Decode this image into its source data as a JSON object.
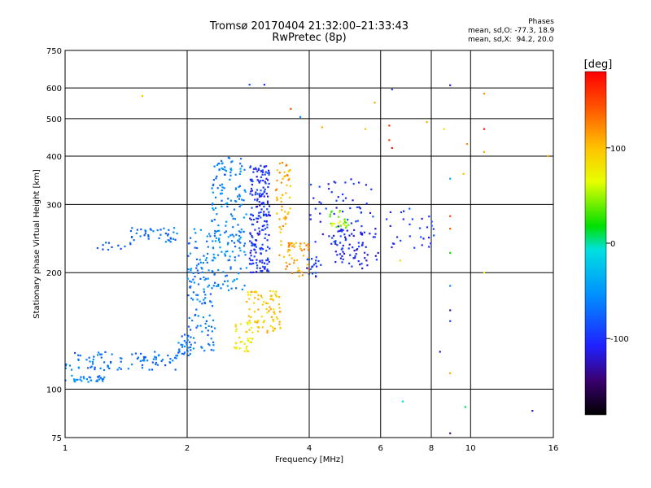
{
  "chart_data": {
    "type": "scatter",
    "title": "Tromsø 20170404 21:32:00–21:33:43",
    "subtitle": "RwPretec (8p)",
    "xlabel": "Frequency [MHz]",
    "ylabel": "Stationary phase Virtual Height [km]",
    "x_scale": "log",
    "y_scale": "log",
    "xlim": [
      1,
      16
    ],
    "ylim": [
      75,
      750
    ],
    "x_ticks": [
      1,
      2,
      4,
      6,
      8,
      10,
      16
    ],
    "y_ticks": [
      75,
      100,
      200,
      300,
      400,
      500,
      600,
      750
    ],
    "grid": true,
    "phase_stats": {
      "header": "Phases",
      "o_label": "mean, sd,O:",
      "o_values": "-77.3, 18.9",
      "x_label": "mean, sd,X:",
      "x_values": " 94.2, 20.0"
    },
    "colorbar": {
      "label": "[deg]",
      "ticks": [
        100,
        0,
        -100
      ],
      "range": [
        -180,
        180
      ],
      "colormap": "rainbow"
    },
    "clusters": [
      {
        "f": [
          1.0,
          1.25
        ],
        "h": [
          104,
          109
        ],
        "phase": -60,
        "n": 30
      },
      {
        "f": [
          1.0,
          1.9
        ],
        "h": [
          112,
          125
        ],
        "phase": -70,
        "n": 90
      },
      {
        "f": [
          1.9,
          2.05
        ],
        "h": [
          122,
          140
        ],
        "phase": -65,
        "n": 25
      },
      {
        "f": [
          1.45,
          1.9
        ],
        "h": [
          240,
          262
        ],
        "phase": -70,
        "n": 40
      },
      {
        "f": [
          1.2,
          1.45
        ],
        "h": [
          228,
          240
        ],
        "phase": -80,
        "n": 12
      },
      {
        "f": [
          2.0,
          2.35
        ],
        "h": [
          125,
          260
        ],
        "phase": -65,
        "n": 130
      },
      {
        "f": [
          2.3,
          2.8
        ],
        "h": [
          180,
          400
        ],
        "phase": -60,
        "n": 180
      },
      {
        "f": [
          2.6,
          2.9
        ],
        "h": [
          125,
          150
        ],
        "phase": 80,
        "n": 35
      },
      {
        "f": [
          2.85,
          3.2
        ],
        "h": [
          200,
          380
        ],
        "phase": -100,
        "n": 200
      },
      {
        "f": [
          2.8,
          3.4
        ],
        "h": [
          140,
          180
        ],
        "phase": 95,
        "n": 80
      },
      {
        "f": [
          3.3,
          3.6
        ],
        "h": [
          210,
          390
        ],
        "phase": 110,
        "n": 60
      },
      {
        "f": [
          3.5,
          4.0
        ],
        "h": [
          195,
          240
        ],
        "phase": 115,
        "n": 40
      },
      {
        "f": [
          3.9,
          4.3
        ],
        "h": [
          195,
          220
        ],
        "phase": -95,
        "n": 20
      },
      {
        "f": [
          4.0,
          5.8
        ],
        "h": [
          230,
          350
        ],
        "phase": -100,
        "n": 70
      },
      {
        "f": [
          4.5,
          5.0
        ],
        "h": [
          260,
          290
        ],
        "phase": 50,
        "n": 25
      },
      {
        "f": [
          4.6,
          6.0
        ],
        "h": [
          205,
          260
        ],
        "phase": -110,
        "n": 60
      },
      {
        "f": [
          6.2,
          8.2
        ],
        "h": [
          230,
          300
        ],
        "phase": -100,
        "n": 30
      }
    ],
    "sparse_points": [
      {
        "f": 1.55,
        "h": 572,
        "phase": 100
      },
      {
        "f": 2.85,
        "h": 612,
        "phase": -90
      },
      {
        "f": 3.1,
        "h": 612,
        "phase": -100
      },
      {
        "f": 3.6,
        "h": 530,
        "phase": 140
      },
      {
        "f": 3.8,
        "h": 505,
        "phase": -60
      },
      {
        "f": 4.3,
        "h": 475,
        "phase": 110
      },
      {
        "f": 5.5,
        "h": 470,
        "phase": 100
      },
      {
        "f": 5.8,
        "h": 550,
        "phase": 110
      },
      {
        "f": 6.4,
        "h": 595,
        "phase": -90
      },
      {
        "f": 6.3,
        "h": 480,
        "phase": 160
      },
      {
        "f": 6.3,
        "h": 440,
        "phase": 150
      },
      {
        "f": 6.4,
        "h": 420,
        "phase": 170
      },
      {
        "f": 6.7,
        "h": 215,
        "phase": 90
      },
      {
        "f": 6.8,
        "h": 93,
        "phase": -10
      },
      {
        "f": 7.8,
        "h": 490,
        "phase": 110
      },
      {
        "f": 8.6,
        "h": 470,
        "phase": 80
      },
      {
        "f": 8.9,
        "h": 610,
        "phase": -120
      },
      {
        "f": 8.9,
        "h": 350,
        "phase": -40
      },
      {
        "f": 8.9,
        "h": 280,
        "phase": 150
      },
      {
        "f": 8.9,
        "h": 260,
        "phase": 140
      },
      {
        "f": 8.9,
        "h": 225,
        "phase": 20
      },
      {
        "f": 8.9,
        "h": 185,
        "phase": -60
      },
      {
        "f": 8.9,
        "h": 160,
        "phase": -130
      },
      {
        "f": 8.9,
        "h": 150,
        "phase": -90
      },
      {
        "f": 8.9,
        "h": 110,
        "phase": 110
      },
      {
        "f": 8.9,
        "h": 77,
        "phase": -140
      },
      {
        "f": 8.4,
        "h": 125,
        "phase": -120
      },
      {
        "f": 9.6,
        "h": 360,
        "phase": 100
      },
      {
        "f": 9.8,
        "h": 430,
        "phase": 120
      },
      {
        "f": 9.7,
        "h": 90,
        "phase": 10
      },
      {
        "f": 10.8,
        "h": 580,
        "phase": 120
      },
      {
        "f": 10.8,
        "h": 470,
        "phase": 170
      },
      {
        "f": 10.8,
        "h": 410,
        "phase": 110
      },
      {
        "f": 10.8,
        "h": 200,
        "phase": 70
      },
      {
        "f": 14.2,
        "h": 88,
        "phase": -120
      },
      {
        "f": 15.5,
        "h": 400,
        "phase": 110
      }
    ]
  }
}
